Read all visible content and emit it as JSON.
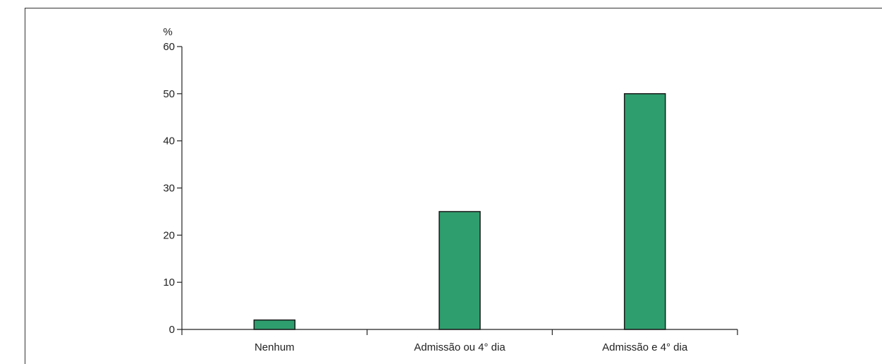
{
  "chart_data": {
    "type": "bar",
    "title": "",
    "xlabel": "",
    "ylabel": "%",
    "categories": [
      "Nenhum",
      "Admissão ou 4° dia",
      "Admissão e 4° dia"
    ],
    "values": [
      2,
      25,
      50
    ],
    "ylim": [
      0,
      60
    ],
    "yticks": [
      0,
      10,
      20,
      30,
      40,
      50,
      60
    ],
    "bar_color": "#2e9e6e",
    "bar_edge_color": "#1a1a1a",
    "grid": false,
    "legend": "none"
  }
}
